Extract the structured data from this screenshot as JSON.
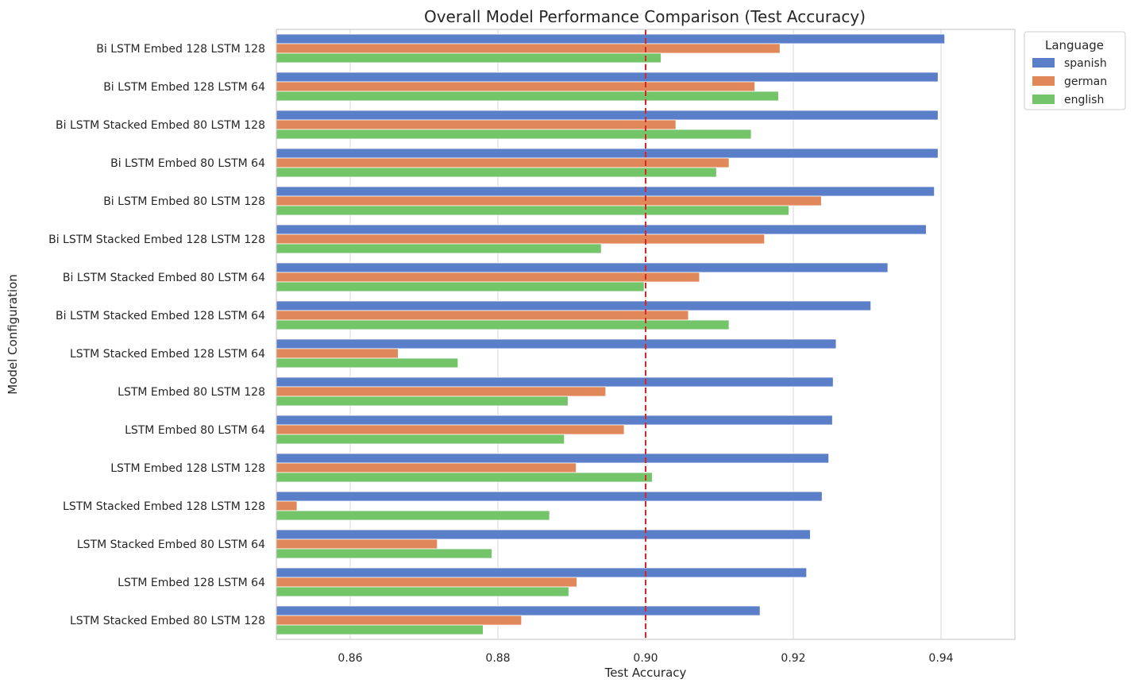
{
  "chart_data": {
    "type": "bar",
    "orientation": "horizontal",
    "title": "Overall Model Performance Comparison (Test Accuracy)",
    "xlabel": "Test Accuracy",
    "ylabel": "Model Configuration",
    "xlim": [
      0.85,
      0.95
    ],
    "xticks": [
      0.86,
      0.88,
      0.9,
      0.92,
      0.94
    ],
    "xtick_labels": [
      "0.86",
      "0.88",
      "0.90",
      "0.92",
      "0.94"
    ],
    "grid": true,
    "reference_line": {
      "x": 0.9,
      "style": "dashed",
      "color": "#d62728"
    },
    "legend": {
      "title": "Language",
      "position": "outside top-right"
    },
    "categories": [
      "Bi LSTM Embed 128  LSTM 128",
      "Bi LSTM Embed 128  LSTM 64",
      "Bi LSTM Stacked Embed 80  LSTM 128",
      "Bi LSTM Embed 80  LSTM 64",
      "Bi LSTM Embed 80  LSTM 128",
      "Bi LSTM Stacked Embed 128  LSTM 128",
      "Bi LSTM Stacked Embed 80  LSTM 64",
      "Bi LSTM Stacked Embed 128  LSTM 64",
      "LSTM Stacked Embed 128  LSTM 64",
      "LSTM Embed 80  LSTM 128",
      "LSTM Embed 80  LSTM 64",
      "LSTM Embed 128  LSTM 128",
      "LSTM Stacked Embed 128  LSTM 128",
      "LSTM Stacked Embed 80  LSTM 64",
      "LSTM Embed 128  LSTM 64",
      "LSTM Stacked Embed 80  LSTM 128"
    ],
    "series": [
      {
        "name": "spanish",
        "color": "#5a7fc8",
        "values": [
          0.9405,
          0.9396,
          0.9396,
          0.9396,
          0.9391,
          0.938,
          0.9328,
          0.9305,
          0.9258,
          0.9254,
          0.9253,
          0.9248,
          0.9239,
          0.9223,
          0.9218,
          0.9155
        ]
      },
      {
        "name": "german",
        "color": "#e0885a",
        "values": [
          0.9182,
          0.9148,
          0.9041,
          0.9113,
          0.9238,
          0.9161,
          0.9073,
          0.9058,
          0.8665,
          0.8946,
          0.8971,
          0.8906,
          0.8528,
          0.8718,
          0.8907,
          0.8832
        ]
      },
      {
        "name": "english",
        "color": "#74c46a",
        "values": [
          0.9021,
          0.918,
          0.9143,
          0.9096,
          0.9194,
          0.894,
          0.8998,
          0.9113,
          0.8746,
          0.8895,
          0.889,
          0.9009,
          0.887,
          0.8792,
          0.8896,
          0.878
        ]
      }
    ]
  }
}
